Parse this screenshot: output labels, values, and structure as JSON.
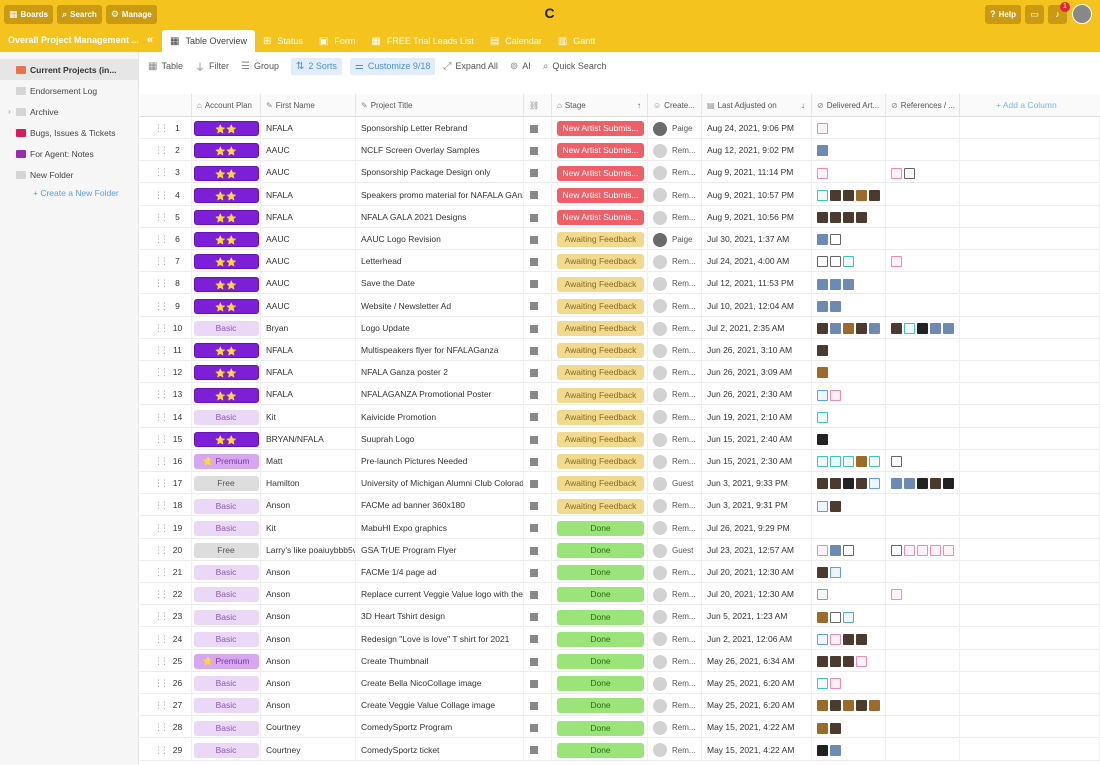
{
  "topbar": {
    "boards": "Boards",
    "search": "Search",
    "manage": "Manage",
    "logo": "C",
    "help": "Help",
    "notif_count": "1"
  },
  "tabbar": {
    "project_title": "Overall Project Management ...",
    "collapse": "«",
    "tabs": [
      {
        "label": "Table Overview",
        "icon": "table-icon"
      },
      {
        "label": "Status",
        "icon": "kanban-icon"
      },
      {
        "label": "Form",
        "icon": "form-icon"
      },
      {
        "label": "FREE Trial Leads List",
        "icon": "table-icon"
      },
      {
        "label": "Calendar",
        "icon": "calendar-icon"
      },
      {
        "label": "Gantt",
        "icon": "gantt-icon"
      }
    ]
  },
  "sidebar": {
    "items": [
      {
        "label": "Current Projects (in...",
        "color": "#e8734a"
      },
      {
        "label": "Endorsement Log",
        "color": "#d5d5d5"
      },
      {
        "label": "Archive",
        "color": "#d5d5d5"
      },
      {
        "label": "Bugs, Issues & Tickets",
        "color": "#d81b60"
      },
      {
        "label": "For Agent: Notes",
        "color": "#9c27b0"
      },
      {
        "label": "New Folder",
        "color": "#d5d5d5"
      }
    ],
    "create_folder": "+ Create a New Folder"
  },
  "toolbar": {
    "table": "Table",
    "filter": "Filter",
    "group": "Group",
    "sorts": "2 Sorts",
    "customize": "Customize 9/18",
    "expand_all": "Expand All",
    "ai": "AI",
    "quick_search": "Quick Search"
  },
  "columns": {
    "account_plan": "Account Plan",
    "first_name": "First Name",
    "project_title": "Project Title",
    "stage": "Stage",
    "created": "Create...",
    "last_adjusted": "Last Adjusted on",
    "delivered": "Delivered Art...",
    "references": "References / ...",
    "add": "+ Add a Column"
  },
  "plan_stars": "⭐⭐",
  "rows": [
    {
      "n": "1",
      "plan": "stars",
      "first": "NFALA",
      "title": "Sponsorship Letter Rebrand",
      "stage": "New Artist Submis...",
      "stype": "new",
      "creator": "Paige",
      "date": "Aug 24, 2021, 9:06 PM",
      "del": [
        "pdf"
      ],
      "ref": []
    },
    {
      "n": "2",
      "plan": "stars",
      "first": "AAUC",
      "title": "NCLF Screen Overlay Samples",
      "stage": "New Artist Submis...",
      "stype": "new",
      "creator": "Rem...",
      "date": "Aug 12, 2021, 9:02 PM",
      "del": [
        "img2"
      ],
      "ref": []
    },
    {
      "n": "3",
      "plan": "stars",
      "first": "AAUC",
      "title": "Sponsorship Package Design only",
      "stage": "New Artist Submis...",
      "stype": "new",
      "creator": "Rem...",
      "date": "Aug 9, 2021, 11:14 PM",
      "del": [
        "pdf"
      ],
      "ref": [
        "pdf",
        "doc"
      ]
    },
    {
      "n": "4",
      "plan": "stars",
      "first": "NFALA",
      "title": "Speakers promo material for NAFALA GAnza",
      "stage": "New Artist Submis...",
      "stype": "new",
      "creator": "Rem...",
      "date": "Aug 9, 2021, 10:57 PM",
      "del": [
        "zip",
        "img",
        "img",
        "img3",
        "img"
      ],
      "ref": []
    },
    {
      "n": "5",
      "plan": "stars",
      "first": "NFALA",
      "title": "NFALA GALA 2021 Designs",
      "stage": "New Artist Submis...",
      "stype": "new",
      "creator": "Rem...",
      "date": "Aug 9, 2021, 10:56 PM",
      "del": [
        "img",
        "img",
        "img",
        "img"
      ],
      "ref": []
    },
    {
      "n": "6",
      "plan": "stars",
      "first": "AAUC",
      "title": "AAUC Logo Revision",
      "stage": "Awaiting Feedback",
      "stype": "await",
      "creator": "Paige",
      "date": "Jul 30, 2021, 1:37 AM",
      "del": [
        "img2",
        "doc"
      ],
      "ref": []
    },
    {
      "n": "7",
      "plan": "stars",
      "first": "AAUC",
      "title": "Letterhead",
      "stage": "Awaiting Feedback",
      "stype": "await",
      "creator": "Rem...",
      "date": "Jul 24, 2021, 4:00 AM",
      "del": [
        "doc",
        "doc",
        "zip"
      ],
      "ref": [
        "pdf"
      ]
    },
    {
      "n": "8",
      "plan": "stars",
      "first": "AAUC",
      "title": "Save the Date",
      "stage": "Awaiting Feedback",
      "stype": "await",
      "creator": "Rem...",
      "date": "Jul 12, 2021, 11:53 PM",
      "del": [
        "img2",
        "img2",
        "img2"
      ],
      "ref": []
    },
    {
      "n": "9",
      "plan": "stars",
      "first": "AAUC",
      "title": "Website / Newsletter Ad",
      "stage": "Awaiting Feedback",
      "stype": "await",
      "creator": "Rem...",
      "date": "Jul 10, 2021, 12:04 AM",
      "del": [
        "img2",
        "img2"
      ],
      "ref": []
    },
    {
      "n": "10",
      "plan": "basic",
      "first": "Bryan",
      "title": "Logo Update",
      "stage": "Awaiting Feedback",
      "stype": "await",
      "creator": "Rem...",
      "date": "Jul 2, 2021, 2:35 AM",
      "del": [
        "img",
        "img2",
        "img3",
        "img",
        "img2"
      ],
      "ref": [
        "img",
        "zip",
        "dark",
        "img2",
        "img2"
      ]
    },
    {
      "n": "11",
      "plan": "stars",
      "first": "NFALA",
      "title": "Multispeakers flyer for NFALAGanza",
      "stage": "Awaiting Feedback",
      "stype": "await",
      "creator": "Rem...",
      "date": "Jun 26, 2021, 3:10 AM",
      "del": [
        "img"
      ],
      "ref": []
    },
    {
      "n": "12",
      "plan": "stars",
      "first": "NFALA",
      "title": "NFALA Ganza poster 2",
      "stage": "Awaiting Feedback",
      "stype": "await",
      "creator": "Rem...",
      "date": "Jun 26, 2021, 3:09 AM",
      "del": [
        "img3"
      ],
      "ref": []
    },
    {
      "n": "13",
      "plan": "stars",
      "first": "NFALA",
      "title": "NFALAGANZA Promotional Poster",
      "stage": "Awaiting Feedback",
      "stype": "await",
      "creator": "Rem...",
      "date": "Jun 26, 2021, 2:30 AM",
      "del": [
        "ai",
        "pdf"
      ],
      "ref": []
    },
    {
      "n": "14",
      "plan": "basic",
      "first": "Kit",
      "title": "Kaivicide Promotion",
      "stage": "Awaiting Feedback",
      "stype": "await",
      "creator": "Rem...",
      "date": "Jun 19, 2021, 2:10 AM",
      "del": [
        "zip"
      ],
      "ref": []
    },
    {
      "n": "15",
      "plan": "stars",
      "first": "BRYAN/NFALA",
      "title": "Suuprah Logo",
      "stage": "Awaiting Feedback",
      "stype": "await",
      "creator": "Rem...",
      "date": "Jun 15, 2021, 2:40 AM",
      "del": [
        "dark"
      ],
      "ref": []
    },
    {
      "n": "16",
      "plan": "premium",
      "first": "Matt",
      "title": "Pre-launch Pictures Needed",
      "stage": "Awaiting Feedback",
      "stype": "await",
      "creator": "Rem...",
      "date": "Jun 15, 2021, 2:30 AM",
      "del": [
        "zip",
        "zip",
        "zip",
        "img3",
        "zip"
      ],
      "ref": [
        "doc"
      ]
    },
    {
      "n": "17",
      "plan": "free",
      "first": "Hamilton",
      "title": "University of Michigan Alumni Club Colorado",
      "stage": "Awaiting Feedback",
      "stype": "await",
      "creator": "Guest",
      "date": "Jun 3, 2021, 9:33 PM",
      "del": [
        "img",
        "img",
        "dark",
        "img",
        "ai"
      ],
      "ref": [
        "img2",
        "img2",
        "dark",
        "img",
        "dark"
      ]
    },
    {
      "n": "18",
      "plan": "basic",
      "first": "Anson",
      "title": "FACMe ad banner 360x180",
      "stage": "Awaiting Feedback",
      "stype": "await",
      "creator": "Rem...",
      "date": "Jun 3, 2021, 9:31 PM",
      "del": [
        "ai",
        "img"
      ],
      "ref": []
    },
    {
      "n": "19",
      "plan": "basic",
      "first": "Kit",
      "title": "MabuHI Expo graphics",
      "stage": "Done",
      "stype": "done",
      "creator": "Rem...",
      "date": "Jul 26, 2021, 9:29 PM",
      "del": [],
      "ref": []
    },
    {
      "n": "20",
      "plan": "free",
      "first": "Larry's like poaiuybbb5v",
      "title": "GSA TrUE Program Flyer",
      "stage": "Done",
      "stype": "done",
      "creator": "Guest",
      "date": "Jul 23, 2021, 12:57 AM",
      "del": [
        "pdf",
        "img2",
        "doc"
      ],
      "ref": [
        "doc",
        "pdf",
        "pdf",
        "pdf",
        "pdf"
      ]
    },
    {
      "n": "21",
      "plan": "basic",
      "first": "Anson",
      "title": "FACMe 1/4 page ad",
      "stage": "Done",
      "stype": "done",
      "creator": "Rem...",
      "date": "Jul 20, 2021, 12:30 AM",
      "del": [
        "img",
        "ai"
      ],
      "ref": []
    },
    {
      "n": "22",
      "plan": "basic",
      "first": "Anson",
      "title": "Replace current Veggie Value logo with the new logo",
      "stage": "Done",
      "stype": "done",
      "creator": "Rem...",
      "date": "Jul 20, 2021, 12:30 AM",
      "del": [
        "zip"
      ],
      "ref": [
        "pdf"
      ]
    },
    {
      "n": "23",
      "plan": "basic",
      "first": "Anson",
      "title": "3D Heart Tshirt design",
      "stage": "Done",
      "stype": "done",
      "creator": "Rem...",
      "date": "Jun 5, 2021, 1:23 AM",
      "del": [
        "img3",
        "doc",
        "ai"
      ],
      "ref": []
    },
    {
      "n": "24",
      "plan": "basic",
      "first": "Anson",
      "title": "Redesign \"Love is love\" T shirt for 2021",
      "stage": "Done",
      "stype": "done",
      "creator": "Rem...",
      "date": "Jun 2, 2021, 12:06 AM",
      "del": [
        "ai",
        "pdf",
        "img",
        "img"
      ],
      "ref": []
    },
    {
      "n": "25",
      "plan": "premium",
      "first": "Anson",
      "title": "Create Thumbnail",
      "stage": "Done",
      "stype": "done",
      "creator": "Rem...",
      "date": "May 26, 2021, 6:34 AM",
      "del": [
        "img",
        "img",
        "img",
        "pdf"
      ],
      "ref": []
    },
    {
      "n": "26",
      "plan": "basic",
      "first": "Anson",
      "title": "Create Bella NicoCollage image",
      "stage": "Done",
      "stype": "done",
      "creator": "Rem...",
      "date": "May 25, 2021, 6:20 AM",
      "del": [
        "zip",
        "pdf"
      ],
      "ref": []
    },
    {
      "n": "27",
      "plan": "basic",
      "first": "Anson",
      "title": "Create Veggie Value Collage image",
      "stage": "Done",
      "stype": "done",
      "creator": "Rem...",
      "date": "May 25, 2021, 6:20 AM",
      "del": [
        "img3",
        "img",
        "img3",
        "img",
        "img3"
      ],
      "ref": []
    },
    {
      "n": "28",
      "plan": "basic",
      "first": "Courtney",
      "title": "ComedySportz Program",
      "stage": "Done",
      "stype": "done",
      "creator": "Rem...",
      "date": "May 15, 2021, 4:22 AM",
      "del": [
        "img3",
        "img"
      ],
      "ref": []
    },
    {
      "n": "29",
      "plan": "basic",
      "first": "Courtney",
      "title": "ComedySportz ticket",
      "stage": "Done",
      "stype": "done",
      "creator": "Rem...",
      "date": "May 15, 2021, 4:22 AM",
      "del": [
        "dark",
        "img2"
      ],
      "ref": []
    }
  ],
  "plan_labels": {
    "basic": "Basic",
    "premium": "⭐ Premium",
    "free": "Free"
  }
}
